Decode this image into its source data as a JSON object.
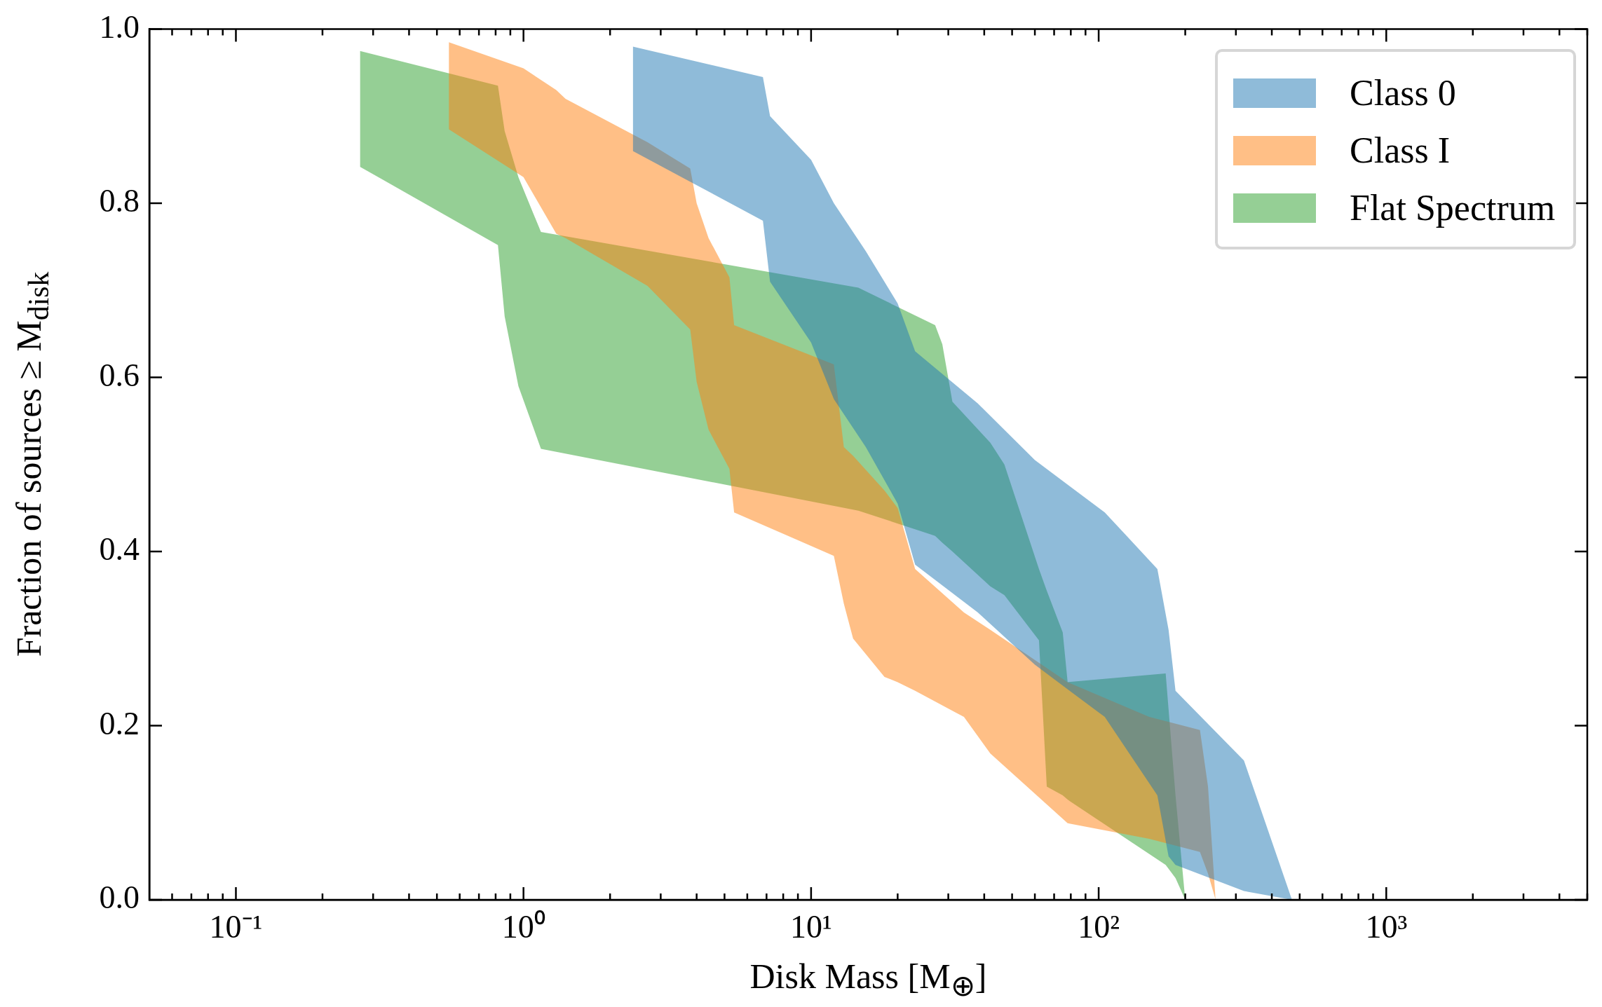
{
  "chart_data": {
    "type": "area",
    "xlabel": "Disk Mass [M$_{⊕}$]",
    "ylabel": "Fraction of sources ≥ M$_{disk}$",
    "log": "x",
    "grid": false,
    "legend": "top right",
    "marker": "none",
    "xlim": [
      0.05,
      5000
    ],
    "ylim": [
      0,
      1
    ],
    "xticks": [
      {
        "value": 0.06,
        "label": null
      },
      {
        "value": 0.07,
        "label": null
      },
      {
        "value": 0.08,
        "label": null
      },
      {
        "value": 0.09,
        "label": null
      },
      {
        "value": 0.1,
        "label": "10⁻¹"
      },
      {
        "value": 0.2,
        "label": null
      },
      {
        "value": 0.3,
        "label": null
      },
      {
        "value": 0.4,
        "label": null
      },
      {
        "value": 0.5,
        "label": null
      },
      {
        "value": 0.6,
        "label": null
      },
      {
        "value": 0.7,
        "label": null
      },
      {
        "value": 0.8,
        "label": null
      },
      {
        "value": 0.9,
        "label": null
      },
      {
        "value": 1,
        "label": "10⁰"
      },
      {
        "value": 2,
        "label": null
      },
      {
        "value": 3,
        "label": null
      },
      {
        "value": 4,
        "label": null
      },
      {
        "value": 5,
        "label": null
      },
      {
        "value": 6,
        "label": null
      },
      {
        "value": 7,
        "label": null
      },
      {
        "value": 8,
        "label": null
      },
      {
        "value": 9,
        "label": null
      },
      {
        "value": 10,
        "label": "10¹"
      },
      {
        "value": 20,
        "label": null
      },
      {
        "value": 30,
        "label": null
      },
      {
        "value": 40,
        "label": null
      },
      {
        "value": 50,
        "label": null
      },
      {
        "value": 60,
        "label": null
      },
      {
        "value": 70,
        "label": null
      },
      {
        "value": 80,
        "label": null
      },
      {
        "value": 90,
        "label": null
      },
      {
        "value": 100,
        "label": "10²"
      },
      {
        "value": 200,
        "label": null
      },
      {
        "value": 300,
        "label": null
      },
      {
        "value": 400,
        "label": null
      },
      {
        "value": 500,
        "label": null
      },
      {
        "value": 600,
        "label": null
      },
      {
        "value": 700,
        "label": null
      },
      {
        "value": 800,
        "label": null
      },
      {
        "value": 900,
        "label": null
      },
      {
        "value": 1000,
        "label": "10³"
      },
      {
        "value": 2000,
        "label": null
      },
      {
        "value": 3000,
        "label": null
      },
      {
        "value": 4000,
        "label": null
      },
      {
        "value": 5000,
        "label": null
      }
    ],
    "yticks": [
      {
        "value": 0,
        "label": "0.0"
      },
      0.2,
      0.4,
      0.6,
      0.8,
      {
        "value": 1,
        "label": "1.0"
      }
    ],
    "series": [
      {
        "name": "Class 0",
        "color": "#1f77b4",
        "x": [
          2.4,
          6.8,
          7.2,
          10,
          12,
          15.5,
          20,
          23,
          38,
          60,
          105,
          160,
          175,
          185,
          320,
          470
        ],
        "values": [
          null,
          null,
          null,
          null,
          null,
          null,
          null,
          null,
          null,
          null,
          null,
          null,
          null,
          null,
          null,
          null
        ],
        "upper": [
          0.98,
          0.945,
          0.9,
          0.85,
          0.8,
          0.745,
          0.685,
          0.63,
          0.57,
          0.505,
          0.445,
          0.38,
          0.31,
          0.24,
          0.16,
          0.0
        ],
        "lower": [
          0.86,
          0.78,
          0.71,
          0.64,
          0.575,
          0.52,
          0.455,
          0.385,
          0.33,
          0.27,
          0.21,
          0.12,
          0.05,
          0.04,
          0.01,
          0.0
        ]
      },
      {
        "name": "Class I",
        "color": "#ff7f0e",
        "x": [
          0.55,
          1.0,
          1.3,
          1.4,
          2.7,
          3.8,
          4.0,
          4.4,
          5.2,
          5.4,
          12,
          13,
          14,
          18,
          20,
          23,
          34,
          42,
          78,
          150,
          225,
          240,
          255
        ],
        "values": [
          null,
          null,
          null,
          null,
          null,
          null,
          null,
          null,
          null,
          null,
          null,
          null,
          null,
          null,
          null,
          null,
          null,
          null,
          null,
          null,
          null,
          null,
          null
        ],
        "upper": [
          0.985,
          0.955,
          0.93,
          0.92,
          0.87,
          0.84,
          0.8,
          0.76,
          0.715,
          0.66,
          0.615,
          0.52,
          0.51,
          0.47,
          0.45,
          0.38,
          0.33,
          0.31,
          0.25,
          0.21,
          0.195,
          0.13,
          0.0
        ],
        "lower": [
          0.885,
          0.83,
          0.765,
          0.76,
          0.705,
          0.655,
          0.595,
          0.54,
          0.495,
          0.445,
          0.395,
          0.34,
          0.3,
          0.256,
          0.25,
          0.24,
          0.21,
          0.168,
          0.088,
          0.07,
          0.055,
          0.03,
          0.0
        ]
      },
      {
        "name": "Flat Spectrum",
        "color": "#2ca02c",
        "x": [
          0.27,
          0.815,
          0.86,
          0.96,
          1.15,
          14.6,
          27,
          28.6,
          31,
          42,
          47,
          62,
          66,
          75,
          78,
          171,
          185,
          200
        ],
        "values": [
          null,
          null,
          null,
          null,
          null,
          null,
          null,
          null,
          null,
          null,
          null,
          null,
          null,
          null,
          null,
          null,
          null,
          null
        ],
        "upper": [
          0.975,
          0.935,
          0.883,
          0.83,
          0.767,
          0.703,
          0.66,
          0.638,
          0.572,
          0.525,
          0.5,
          0.38,
          0.355,
          0.307,
          0.25,
          0.26,
          0.12,
          0.0
        ],
        "lower": [
          0.842,
          0.752,
          0.67,
          0.59,
          0.518,
          0.447,
          0.418,
          0.41,
          0.4,
          0.36,
          0.35,
          0.298,
          0.13,
          0.12,
          0.115,
          0.04,
          0.025,
          0.0
        ]
      }
    ]
  }
}
